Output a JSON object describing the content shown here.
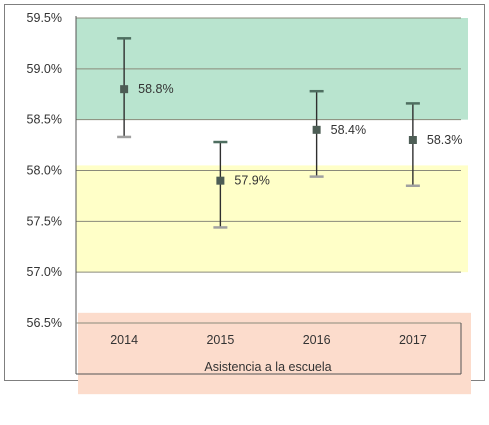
{
  "chart_data": {
    "type": "scatter",
    "title": "",
    "xlabel": "Asistencia a la escuela",
    "ylabel": "",
    "categories": [
      "2014",
      "2015",
      "2016",
      "2017"
    ],
    "y_ticks": [
      "59.5%",
      "59.0%",
      "58.5%",
      "58.0%",
      "57.5%",
      "57.0%",
      "56.5%"
    ],
    "ylim": [
      56.5,
      59.5
    ],
    "grid": true,
    "legend": "none",
    "series": [
      {
        "values": [
          58.8,
          57.9,
          58.4,
          58.3
        ],
        "lower": [
          58.33,
          57.44,
          57.94,
          57.85
        ],
        "upper": [
          59.3,
          58.28,
          58.78,
          58.66
        ],
        "labels": [
          "58.8%",
          "57.9%",
          "58.4%",
          "58.3%"
        ]
      }
    ],
    "bands": [
      {
        "from": 58.5,
        "to": 59.5,
        "color": "#b9e4cf"
      },
      {
        "from": 57.0,
        "to": 58.05,
        "color": "#ffffc8"
      },
      {
        "from": 55.8,
        "to": 56.6,
        "color": "#fcdccc"
      }
    ]
  },
  "colors": {
    "point": "#4d5d55",
    "errorbar_top": "#4e6e60",
    "errorbar_bottom": "#a0a0a0",
    "grid": "#8a8a7a",
    "axis": "#555555",
    "frame": "#7f7f7f"
  }
}
